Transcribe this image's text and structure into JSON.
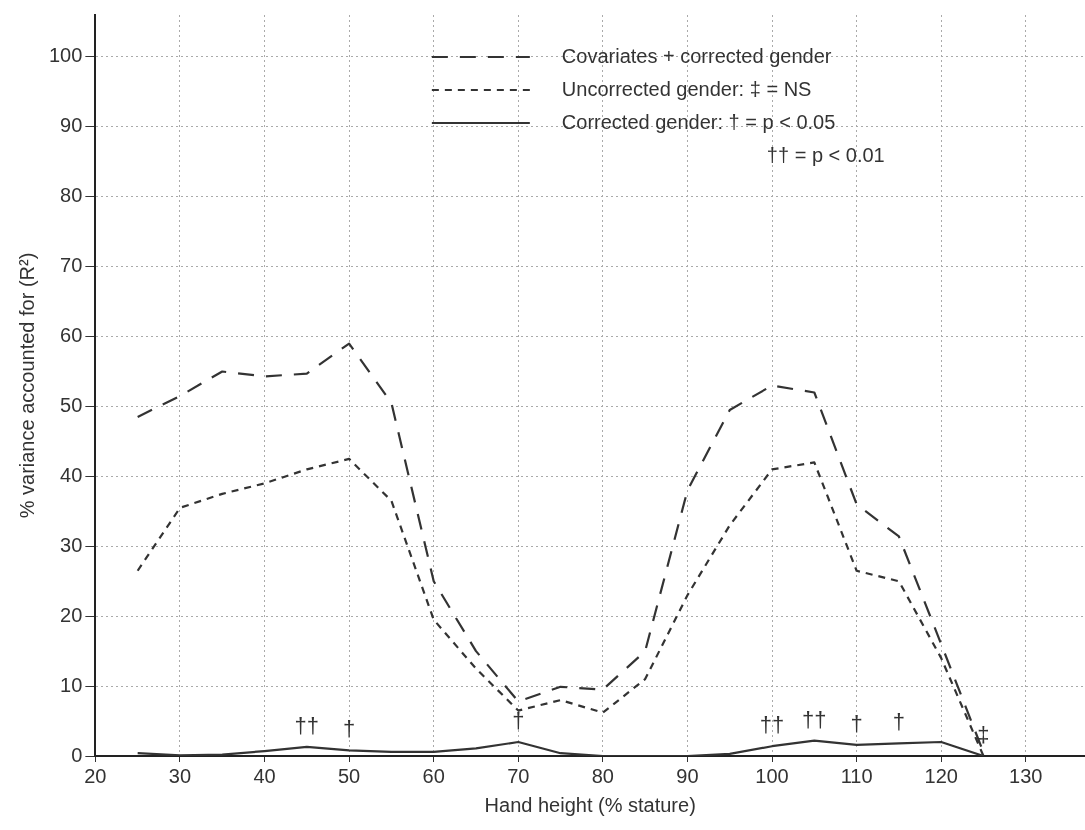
{
  "chart_data": {
    "type": "line",
    "xlabel": "Hand height (% stature)",
    "ylabel": "% variance accounted for (R²)",
    "x": [
      25,
      30,
      35,
      40,
      45,
      50,
      55,
      60,
      65,
      70,
      75,
      80,
      85,
      90,
      95,
      100,
      105,
      110,
      115,
      120,
      125
    ],
    "series": [
      {
        "name": "Covariates + corrected gender",
        "color": "#333333",
        "line_style": "dashed",
        "values": [
          48.5,
          51.5,
          55,
          54.3,
          54.7,
          59,
          50.5,
          25,
          15,
          7.8,
          9.9,
          9.5,
          15,
          38,
          49.5,
          53,
          52,
          36,
          31.4,
          16,
          0.5
        ]
      },
      {
        "name": "Uncorrected gender: ‡ = NS",
        "color": "#333333",
        "line_style": "dotted",
        "values": [
          26.5,
          35.5,
          37.5,
          39,
          41,
          42.5,
          36.5,
          19.5,
          12.5,
          6.5,
          8,
          6.2,
          11,
          23,
          33,
          41,
          42,
          26.5,
          25,
          14,
          0
        ]
      },
      {
        "name": "Corrected gender: † = p < 0.05",
        "color": "#333333",
        "line_style": "solid",
        "values": [
          0.4,
          0.1,
          0.2,
          0.7,
          1.3,
          0.8,
          0.6,
          0.6,
          1.1,
          2,
          0.4,
          0,
          0,
          0,
          0.3,
          1.4,
          2.2,
          1.6,
          1.8,
          2,
          0
        ]
      }
    ],
    "annotations": [
      "†† = p < 0.01",
      {
        "text": "††",
        "x": 45,
        "y": 1.3
      },
      {
        "text": "†",
        "x": 50,
        "y": 0.8
      },
      {
        "text": "†",
        "x": 70,
        "y": 2
      },
      {
        "text": "††",
        "x": 100,
        "y": 1.4
      },
      {
        "text": "††",
        "x": 105,
        "y": 2.2
      },
      {
        "text": "†",
        "x": 110,
        "y": 1.6
      },
      {
        "text": "†",
        "x": 115,
        "y": 1.8
      },
      {
        "text": "‡",
        "x": 125,
        "y": 0
      }
    ],
    "xlim": [
      20,
      137
    ],
    "xticks": [
      20,
      30,
      40,
      50,
      60,
      70,
      80,
      90,
      100,
      110,
      120,
      130
    ],
    "ylim": [
      0,
      106
    ],
    "yticks": [
      0,
      10,
      20,
      30,
      40,
      50,
      60,
      70,
      80,
      90,
      100
    ],
    "grid": true,
    "legend": "top right",
    "marker": "none"
  }
}
